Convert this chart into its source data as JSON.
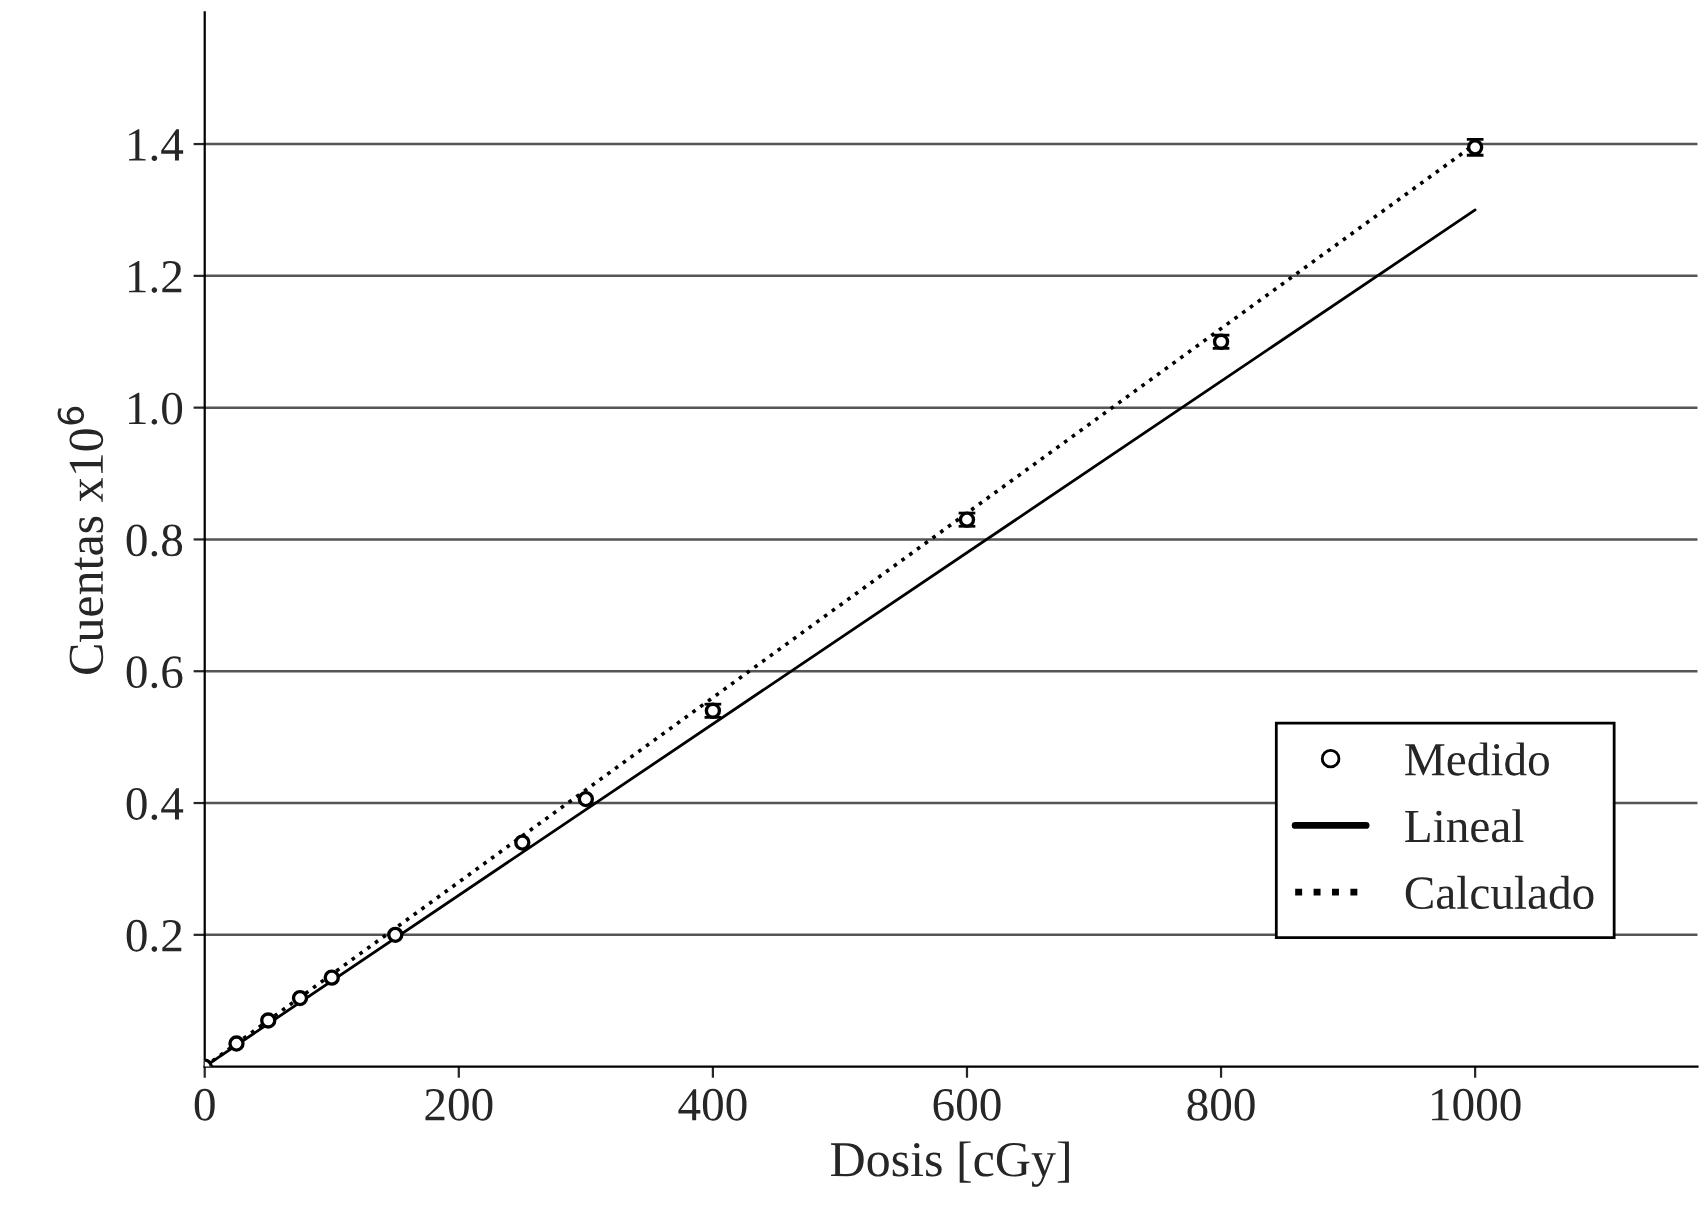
{
  "chart_data": {
    "type": "scatter",
    "xlabel": "Dosis [cGy]",
    "ylabel": "Cuentas x10$^{6}$",
    "xlim": [
      0,
      1175
    ],
    "ylim": [
      0,
      1.6
    ],
    "xticks": [
      0,
      200,
      400,
      600,
      800,
      1000
    ],
    "yticks": [
      0.2,
      0.4,
      0.6,
      0.8,
      {
        "value": 1,
        "label": "1.0"
      },
      1.2,
      1.4
    ],
    "grid": "y",
    "legend": "bottom right",
    "series": [
      {
        "name": "Medido",
        "marker": "circle",
        "color": "#000000",
        "x": [
          0,
          25,
          50,
          75,
          100,
          150,
          250,
          300,
          400,
          600,
          800,
          1000
        ],
        "values": [
          0,
          0.035,
          0.07,
          0.104,
          0.135,
          0.2,
          0.34,
          0.406,
          0.54,
          0.83,
          1.1,
          1.395
        ],
        "errors": [
          null,
          null,
          null,
          null,
          null,
          null,
          null,
          null,
          0.01,
          0.01,
          0.01,
          0.012
        ]
      },
      {
        "name": "Lineal",
        "type": "line",
        "line_style": "solid",
        "color": "#000000",
        "x": [
          0,
          1000
        ],
        "values": [
          0,
          1.3
        ]
      },
      {
        "name": "Calculado",
        "type": "line",
        "line_style": "dotted",
        "color": "#000000",
        "x": [
          0,
          1000
        ],
        "values": [
          0,
          1.4
        ]
      }
    ]
  }
}
